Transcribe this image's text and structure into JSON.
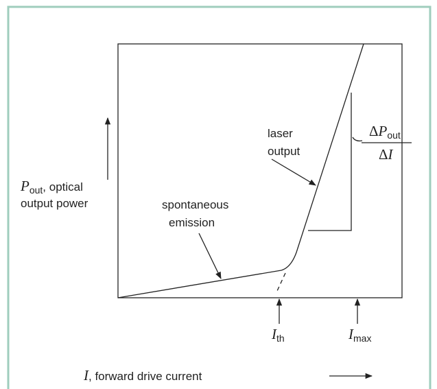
{
  "diagram": {
    "y_axis_label": {
      "symbol": "P",
      "subscript": "out",
      "rest": ", optical",
      "line2": "output power"
    },
    "x_axis_label": {
      "symbol": "I",
      "rest": ", forward drive current"
    },
    "laser_label": [
      "laser",
      "output"
    ],
    "spontaneous_label": [
      "spontaneous",
      "emission"
    ],
    "slope_label": {
      "delta": "Δ",
      "symbol": "P",
      "subscript": "out",
      "den_delta": "Δ",
      "den_symbol": "I"
    },
    "markers": [
      {
        "symbol": "I",
        "subscript": "th"
      },
      {
        "symbol": "I",
        "subscript": "max"
      }
    ]
  }
}
